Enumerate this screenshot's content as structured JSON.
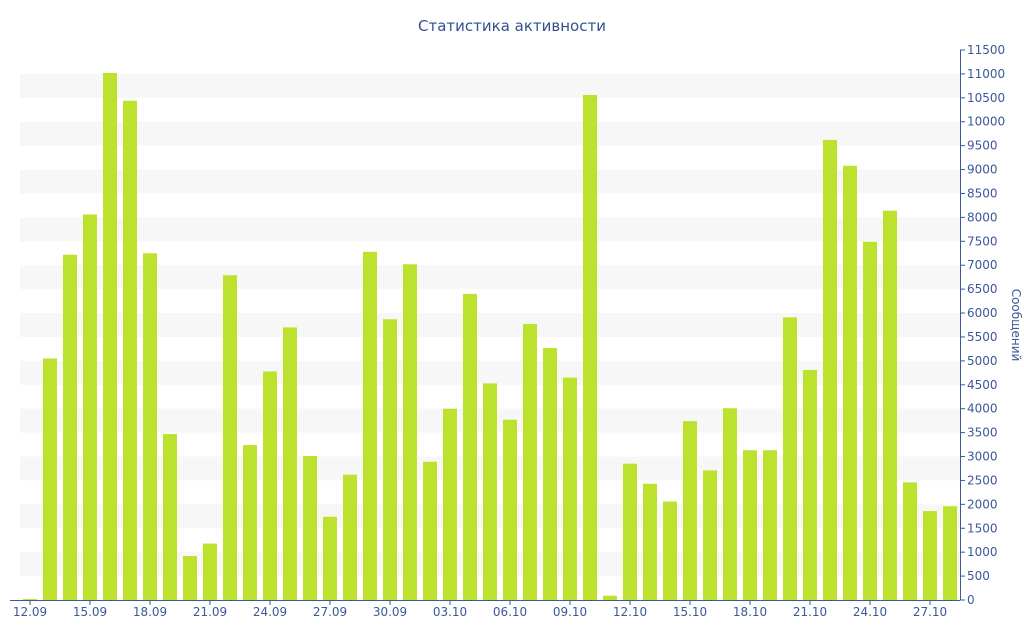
{
  "chart_data": {
    "type": "bar",
    "title": "Статистика активности",
    "ylabel": "Сообщений",
    "xlabel": "",
    "ylim": [
      0,
      11500
    ],
    "ytick_step": 500,
    "y_axis_side": "right",
    "grid": "horizontal-bands",
    "categories": [
      "12.09",
      "13.09",
      "14.09",
      "15.09",
      "16.09",
      "17.09",
      "18.09",
      "19.09",
      "20.09",
      "21.09",
      "22.09",
      "23.09",
      "24.09",
      "25.09",
      "26.09",
      "27.09",
      "28.09",
      "29.09",
      "30.09",
      "01.10",
      "02.10",
      "03.10",
      "04.10",
      "05.10",
      "06.10",
      "07.10",
      "08.10",
      "09.10",
      "10.10",
      "11.10",
      "12.10",
      "13.10",
      "14.10",
      "15.10",
      "16.10",
      "17.10",
      "18.10",
      "19.10",
      "20.10",
      "21.10",
      "22.10",
      "23.10",
      "24.10",
      "25.10",
      "26.10",
      "27.10",
      "28.10"
    ],
    "values": [
      20,
      5050,
      7220,
      8060,
      11020,
      10440,
      7250,
      3470,
      920,
      1180,
      6790,
      3240,
      4780,
      5700,
      3010,
      1740,
      2620,
      7280,
      5870,
      7020,
      2890,
      4000,
      6400,
      4530,
      3770,
      5770,
      5270,
      4650,
      10560,
      90,
      2850,
      2430,
      2060,
      3740,
      2710,
      4010,
      3130,
      3130,
      5910,
      4810,
      9620,
      9080,
      7490,
      8140,
      2460,
      1860,
      1960
    ],
    "xtick_labels": [
      "12.09",
      "15.09",
      "18.09",
      "21.09",
      "24.09",
      "27.09",
      "30.09",
      "03.10",
      "06.10",
      "09.10",
      "12.10",
      "15.10",
      "18.10",
      "21.10",
      "24.10",
      "27.10"
    ],
    "colors": {
      "bar": "#bde22e",
      "band": "#f7f7f7",
      "axis": "#3b5998",
      "text": "#3b5998",
      "title": "#34508e"
    }
  }
}
